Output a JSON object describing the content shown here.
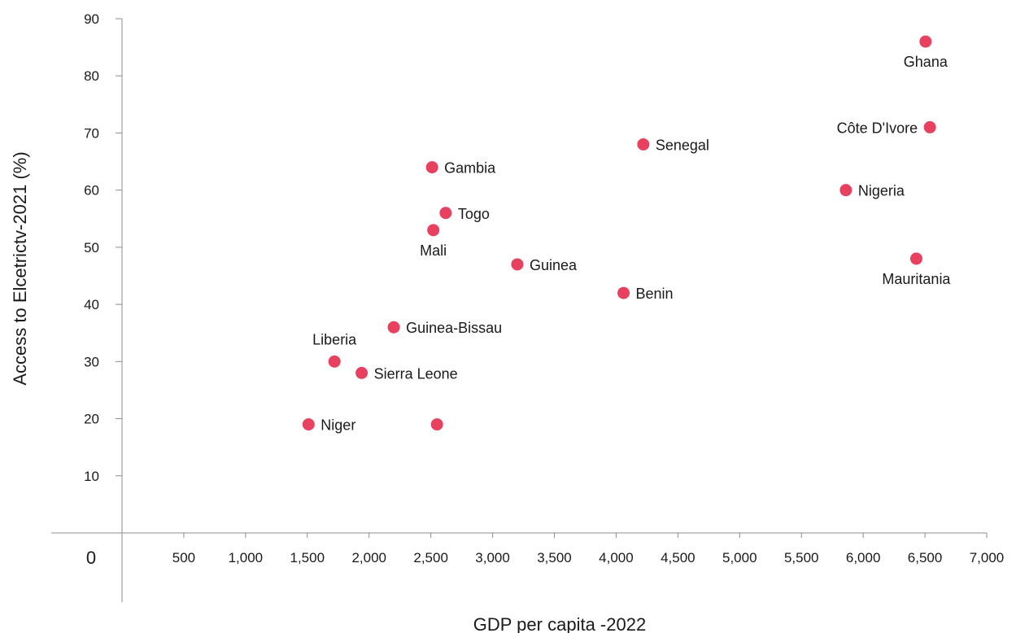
{
  "chart_data": {
    "type": "scatter",
    "title": "",
    "xlabel": "GDP per capita -2022",
    "ylabel": "Access to Elcetrictv-2021 (%)",
    "origin_label": "0",
    "xlim": [
      0,
      7000
    ],
    "ylim": [
      -10,
      90
    ],
    "x_ticks": [
      {
        "value": 500,
        "label": "500"
      },
      {
        "value": 1000,
        "label": "1,000"
      },
      {
        "value": 1500,
        "label": "1,500"
      },
      {
        "value": 2000,
        "label": "2,000"
      },
      {
        "value": 2500,
        "label": "2,500"
      },
      {
        "value": 3000,
        "label": "3,000"
      },
      {
        "value": 3500,
        "label": "3,500"
      },
      {
        "value": 4000,
        "label": "4,000"
      },
      {
        "value": 4500,
        "label": "4,500"
      },
      {
        "value": 5000,
        "label": "5,000"
      },
      {
        "value": 5500,
        "label": "5,500"
      },
      {
        "value": 6000,
        "label": "6,000"
      },
      {
        "value": 6500,
        "label": "6,500"
      },
      {
        "value": 7000,
        "label": "7,000"
      }
    ],
    "y_ticks": [
      {
        "value": 10,
        "label": "10"
      },
      {
        "value": 20,
        "label": "20"
      },
      {
        "value": 30,
        "label": "30"
      },
      {
        "value": 40,
        "label": "40"
      },
      {
        "value": 50,
        "label": "50"
      },
      {
        "value": 60,
        "label": "60"
      },
      {
        "value": 70,
        "label": "70"
      },
      {
        "value": 80,
        "label": "80"
      },
      {
        "value": 90,
        "label": "90"
      }
    ],
    "grid": false,
    "point_color": "#e8405f",
    "points": [
      {
        "label": "Ghana",
        "x": 6505,
        "y": 86,
        "label_pos": "below"
      },
      {
        "label": "Côte D'Ivore",
        "x": 6540,
        "y": 71,
        "label_pos": "left"
      },
      {
        "label": "Senegal",
        "x": 4220,
        "y": 68,
        "label_pos": "right"
      },
      {
        "label": "Gambia",
        "x": 2510,
        "y": 64,
        "label_pos": "right"
      },
      {
        "label": "Nigeria",
        "x": 5860,
        "y": 60,
        "label_pos": "right"
      },
      {
        "label": "Togo",
        "x": 2620,
        "y": 56,
        "label_pos": "right"
      },
      {
        "label": "Mali",
        "x": 2520,
        "y": 53,
        "label_pos": "below"
      },
      {
        "label": "Mauritania",
        "x": 6430,
        "y": 48,
        "label_pos": "below"
      },
      {
        "label": "Guinea",
        "x": 3200,
        "y": 47,
        "label_pos": "right"
      },
      {
        "label": "Benin",
        "x": 4060,
        "y": 42,
        "label_pos": "right"
      },
      {
        "label": "Guinea-Bissau",
        "x": 2200,
        "y": 36,
        "label_pos": "right"
      },
      {
        "label": "Liberia",
        "x": 1720,
        "y": 30,
        "label_pos": "above"
      },
      {
        "label": "Sierra Leone",
        "x": 1940,
        "y": 28,
        "label_pos": "right"
      },
      {
        "label": "Niger",
        "x": 1510,
        "y": 19,
        "label_pos": "right"
      },
      {
        "label": "",
        "x": 2550,
        "y": 19,
        "label_pos": "none"
      }
    ]
  }
}
